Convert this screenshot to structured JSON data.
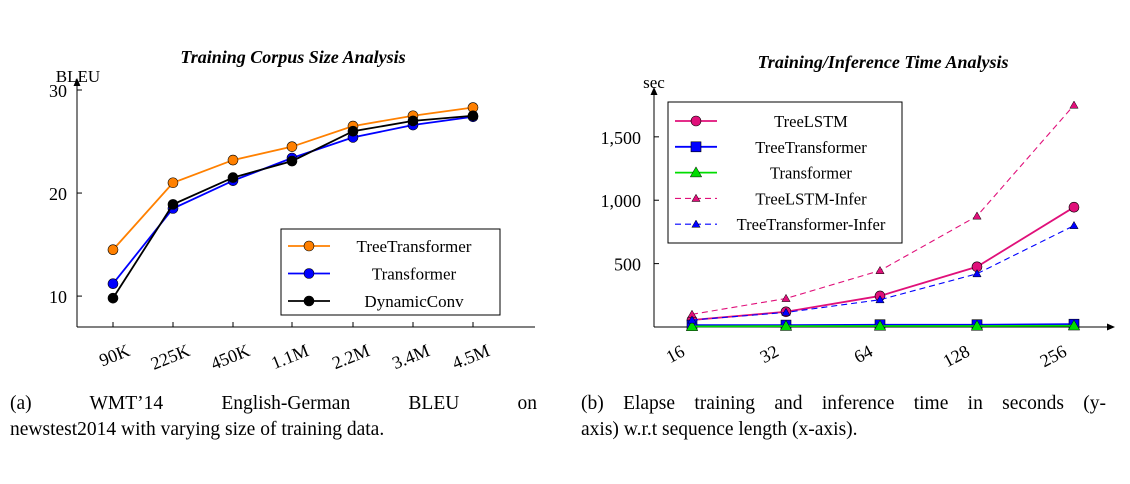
{
  "chart_data": [
    {
      "type": "line",
      "title": "Training Corpus Size Analysis",
      "xlabel": "",
      "ylabel": "BLEU",
      "categories": [
        "90K",
        "225K",
        "450K",
        "1.1M",
        "2.2M",
        "3.4M",
        "4.5M"
      ],
      "ylim": [
        7,
        30
      ],
      "yticks": [
        10,
        20,
        30
      ],
      "grid": false,
      "legend_position": "bottom-right",
      "series": [
        {
          "name": "TreeTransformer",
          "color": "#ff8000",
          "marker": "circle",
          "values": [
            14.5,
            21.0,
            23.2,
            24.5,
            26.5,
            27.5,
            28.3
          ]
        },
        {
          "name": "Transformer",
          "color": "#0000ff",
          "marker": "circle",
          "values": [
            11.2,
            18.5,
            21.2,
            23.4,
            25.4,
            26.6,
            27.4
          ]
        },
        {
          "name": "DynamicConv",
          "color": "#000000",
          "marker": "circle",
          "values": [
            9.8,
            18.9,
            21.5,
            23.1,
            26.0,
            27.0,
            27.5
          ]
        }
      ],
      "caption": "(a) WMT’14 English-German BLEU on newstest2014 with varying size of training data."
    },
    {
      "type": "line",
      "title": "Training/Inference Time Analysis",
      "xlabel": "",
      "ylabel": "sec",
      "categories": [
        "16",
        "32",
        "64",
        "128",
        "256"
      ],
      "ylim": [
        0,
        1830
      ],
      "yticks": [
        500,
        1000,
        1500
      ],
      "ytick_labels": [
        "500",
        "1,000",
        "1,500"
      ],
      "grid": false,
      "legend_position": "top-left",
      "series": [
        {
          "name": "TreeLSTM",
          "color": "#e0107a",
          "marker": "circle",
          "dash": false,
          "values": [
            55,
            120,
            245,
            475,
            945
          ]
        },
        {
          "name": "TreeTransformer",
          "color": "#0000ff",
          "marker": "square",
          "dash": false,
          "values": [
            15,
            15,
            18,
            18,
            22
          ]
        },
        {
          "name": "Transformer",
          "color": "#00dd00",
          "marker": "triangle",
          "dash": false,
          "values": [
            5,
            7,
            8,
            8,
            10
          ]
        },
        {
          "name": "TreeLSTM-Infer",
          "color": "#e0107a",
          "marker": "triangle",
          "dash": true,
          "values": [
            100,
            225,
            445,
            875,
            1750
          ]
        },
        {
          "name": "TreeTransformer-Infer",
          "color": "#0000ff",
          "marker": "triangle",
          "dash": true,
          "values": [
            55,
            115,
            215,
            420,
            800
          ]
        }
      ],
      "caption": "(b) Elapse training and inference time in seconds (y-axis) w.r.t sequence length (x-axis)."
    }
  ],
  "captions": {
    "a_line1": "(a) WMT’14 English-German BLEU on",
    "a_line2": "newstest2014 with varying size of training data.",
    "b_line1": "(b) Elapse training and inference time in seconds (y-",
    "b_line2": "axis) w.r.t sequence length (x-axis)."
  }
}
